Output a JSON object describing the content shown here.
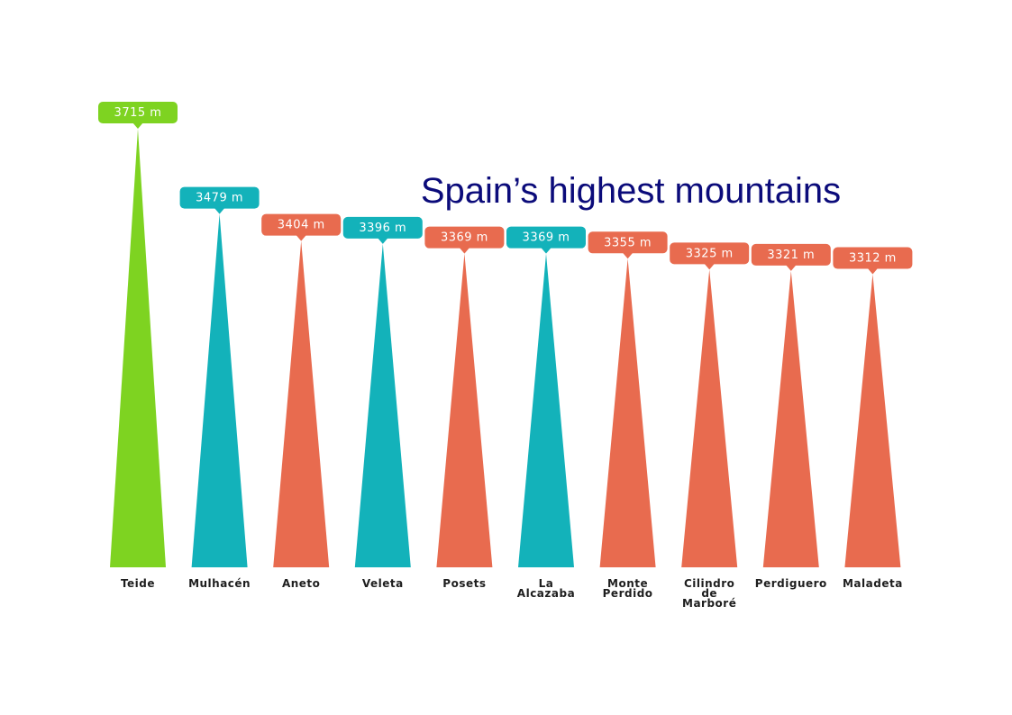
{
  "chart_data": {
    "type": "bar",
    "title": "Spain’s highest mountains",
    "categories": [
      "Teide",
      "Mulhacén",
      "Aneto",
      "Veleta",
      "Posets",
      "La Alcazaba",
      "Monte Perdido",
      "Cilindro de Marboré",
      "Perdiguero",
      "Maladeta"
    ],
    "label_lines": [
      [
        "Teide"
      ],
      [
        "Mulhacén"
      ],
      [
        "Aneto"
      ],
      [
        "Veleta"
      ],
      [
        "Posets"
      ],
      [
        "La",
        "Alcazaba"
      ],
      [
        "Monte",
        "Perdido"
      ],
      [
        "Cilindro",
        "de",
        "Marboré"
      ],
      [
        "Perdiguero"
      ],
      [
        "Maladeta"
      ]
    ],
    "values": [
      3715,
      3479,
      3404,
      3396,
      3369,
      3369,
      3355,
      3325,
      3321,
      3312
    ],
    "data_labels": [
      "3715 m",
      "3479 m",
      "3404 m",
      "3396 m",
      "3369 m",
      "3369 m",
      "3355 m",
      "3325 m",
      "3321 m",
      "3312 m"
    ],
    "unit": "m",
    "colors": [
      "#7ed321",
      "#13b2ba",
      "#e86b4f",
      "#13b2ba",
      "#e86b4f",
      "#13b2ba",
      "#e86b4f",
      "#e86b4f",
      "#e86b4f",
      "#e86b4f"
    ],
    "ylim": [
      2500,
      3715
    ],
    "grid": false,
    "legend": "none"
  }
}
